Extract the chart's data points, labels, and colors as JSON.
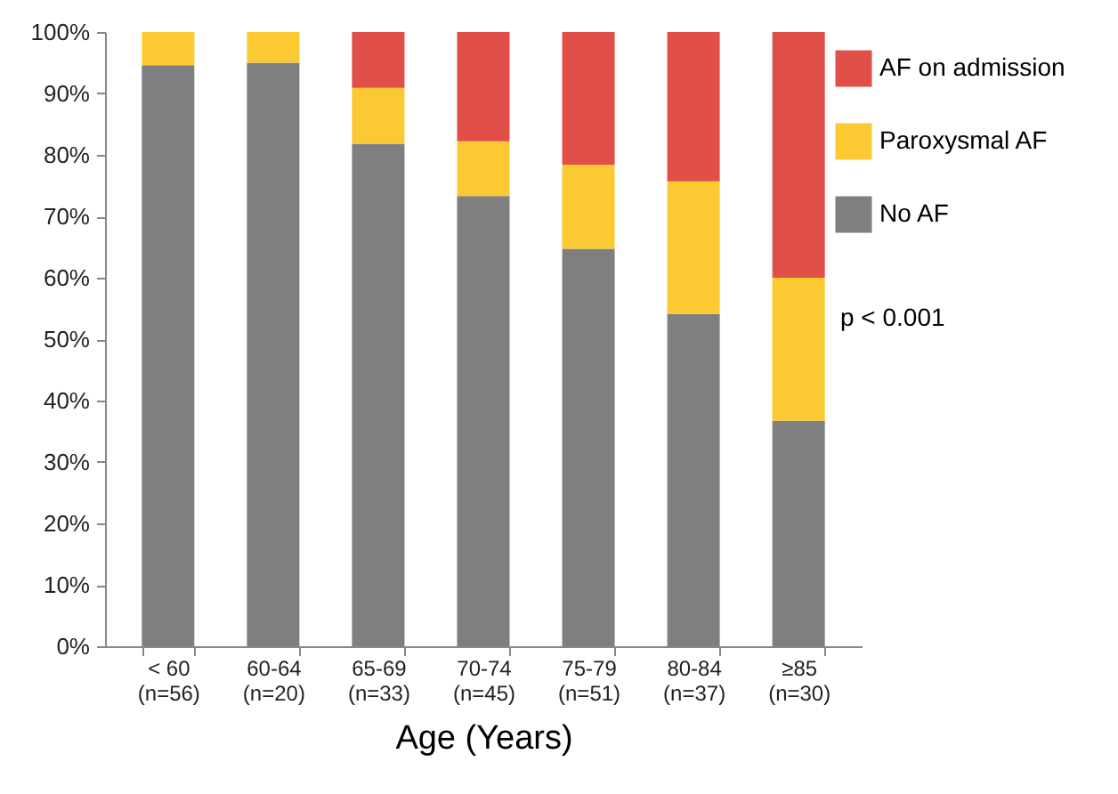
{
  "chart_data": {
    "type": "bar",
    "stacked": true,
    "xlabel": "Age (Years)",
    "categories": [
      "< 60\n(n=56)",
      "60-64\n(n=20)",
      "65-69\n(n=33)",
      "70-74\n(n=45)",
      "75-79\n(n=51)",
      "80-84\n(n=37)",
      "≥85\n(n=30)"
    ],
    "series": [
      {
        "name": "No AF",
        "color": "#7f7f7f",
        "values": [
          94.6,
          95.0,
          81.8,
          73.3,
          64.7,
          54.1,
          36.7
        ]
      },
      {
        "name": "Paroxysmal AF",
        "color": "#fbc932",
        "values": [
          5.4,
          5.0,
          9.1,
          8.9,
          13.7,
          21.6,
          23.3
        ]
      },
      {
        "name": "AF on admission",
        "color": "#e05048",
        "values": [
          0,
          0,
          9.1,
          17.8,
          21.6,
          24.3,
          40.0
        ]
      }
    ],
    "ylim": [
      0,
      100
    ],
    "yticks": [
      {
        "value": 0,
        "label": "0%"
      },
      {
        "value": 10,
        "label": "10%"
      },
      {
        "value": 20,
        "label": "20%"
      },
      {
        "value": 30,
        "label": "30%"
      },
      {
        "value": 40,
        "label": "40%"
      },
      {
        "value": 50,
        "label": "50%"
      },
      {
        "value": 60,
        "label": "60%"
      },
      {
        "value": 70,
        "label": "70%"
      },
      {
        "value": 80,
        "label": "80%"
      },
      {
        "value": 90,
        "label": "90%"
      },
      {
        "value": 100,
        "label": "100%"
      }
    ],
    "grid": false,
    "legend": "right",
    "annotations": [
      "p < 0.001"
    ]
  }
}
